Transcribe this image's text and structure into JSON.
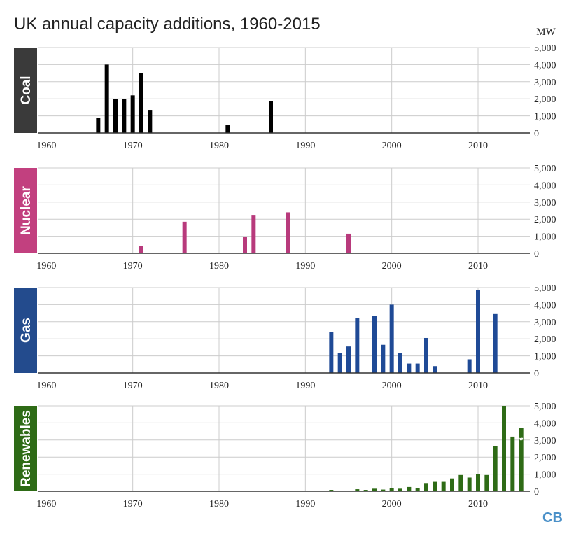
{
  "title": "UK annual capacity additions, 1960-2015",
  "unit_label": "MW",
  "logo": "CB",
  "colors": {
    "Coal": "#000000",
    "Nuclear": "#b83a7c",
    "Gas": "#1f4a96",
    "Renewables": "#2e6b16",
    "Coal_panel": "#3a3a3a",
    "Nuclear_panel": "#c2407f",
    "Gas_panel": "#234b8d",
    "Renewables_panel": "#2e6b16"
  },
  "chart_data": [
    {
      "type": "bar",
      "name": "Coal",
      "x_ticks": [
        "1960",
        "1970",
        "1980",
        "1990",
        "2000",
        "2010"
      ],
      "y_ticks": [
        "0",
        "1,000",
        "2,000",
        "3,000",
        "4,000",
        "5,000"
      ],
      "xlim": [
        1959,
        2016
      ],
      "ylim": [
        0,
        5000
      ],
      "x": [
        1966,
        1967,
        1968,
        1969,
        1970,
        1971,
        1972,
        1981,
        1986
      ],
      "values": [
        900,
        4000,
        2000,
        2000,
        2200,
        3500,
        1350,
        450,
        1850
      ]
    },
    {
      "type": "bar",
      "name": "Nuclear",
      "x_ticks": [
        "1960",
        "1970",
        "1980",
        "1990",
        "2000",
        "2010"
      ],
      "y_ticks": [
        "0",
        "1,000",
        "2,000",
        "3,000",
        "4,000",
        "5,000"
      ],
      "xlim": [
        1959,
        2016
      ],
      "ylim": [
        0,
        5000
      ],
      "x": [
        1971,
        1976,
        1983,
        1984,
        1988,
        1995
      ],
      "values": [
        450,
        1850,
        950,
        2250,
        2400,
        1150
      ]
    },
    {
      "type": "bar",
      "name": "Gas",
      "x_ticks": [
        "1960",
        "1970",
        "1980",
        "1990",
        "2000",
        "2010"
      ],
      "y_ticks": [
        "0",
        "1,000",
        "2,000",
        "3,000",
        "4,000",
        "5,000"
      ],
      "xlim": [
        1959,
        2016
      ],
      "ylim": [
        0,
        5000
      ],
      "x": [
        1993,
        1994,
        1995,
        1996,
        1998,
        1999,
        2000,
        2001,
        2002,
        2003,
        2004,
        2005,
        2009,
        2010,
        2012
      ],
      "values": [
        2400,
        1150,
        1550,
        3200,
        3350,
        1650,
        4000,
        1150,
        550,
        550,
        2050,
        400,
        800,
        4850,
        3450
      ]
    },
    {
      "type": "bar",
      "name": "Renewables",
      "x_ticks": [
        "1960",
        "1970",
        "1980",
        "1990",
        "2000",
        "2010"
      ],
      "y_ticks": [
        "0",
        "1,000",
        "2,000",
        "3,000",
        "4,000",
        "5,000"
      ],
      "xlim": [
        1959,
        2016
      ],
      "ylim": [
        0,
        5000
      ],
      "x": [
        1962,
        1966,
        1973,
        1993,
        1996,
        1997,
        1998,
        1999,
        2000,
        2001,
        2002,
        2003,
        2004,
        2005,
        2006,
        2007,
        2008,
        2009,
        2010,
        2011,
        2012,
        2013,
        2014,
        2015
      ],
      "values": [
        20,
        20,
        20,
        80,
        120,
        80,
        150,
        100,
        180,
        150,
        250,
        200,
        480,
        550,
        550,
        750,
        950,
        800,
        1000,
        950,
        2650,
        5000,
        3200,
        3700
      ],
      "annotation": "*"
    }
  ]
}
